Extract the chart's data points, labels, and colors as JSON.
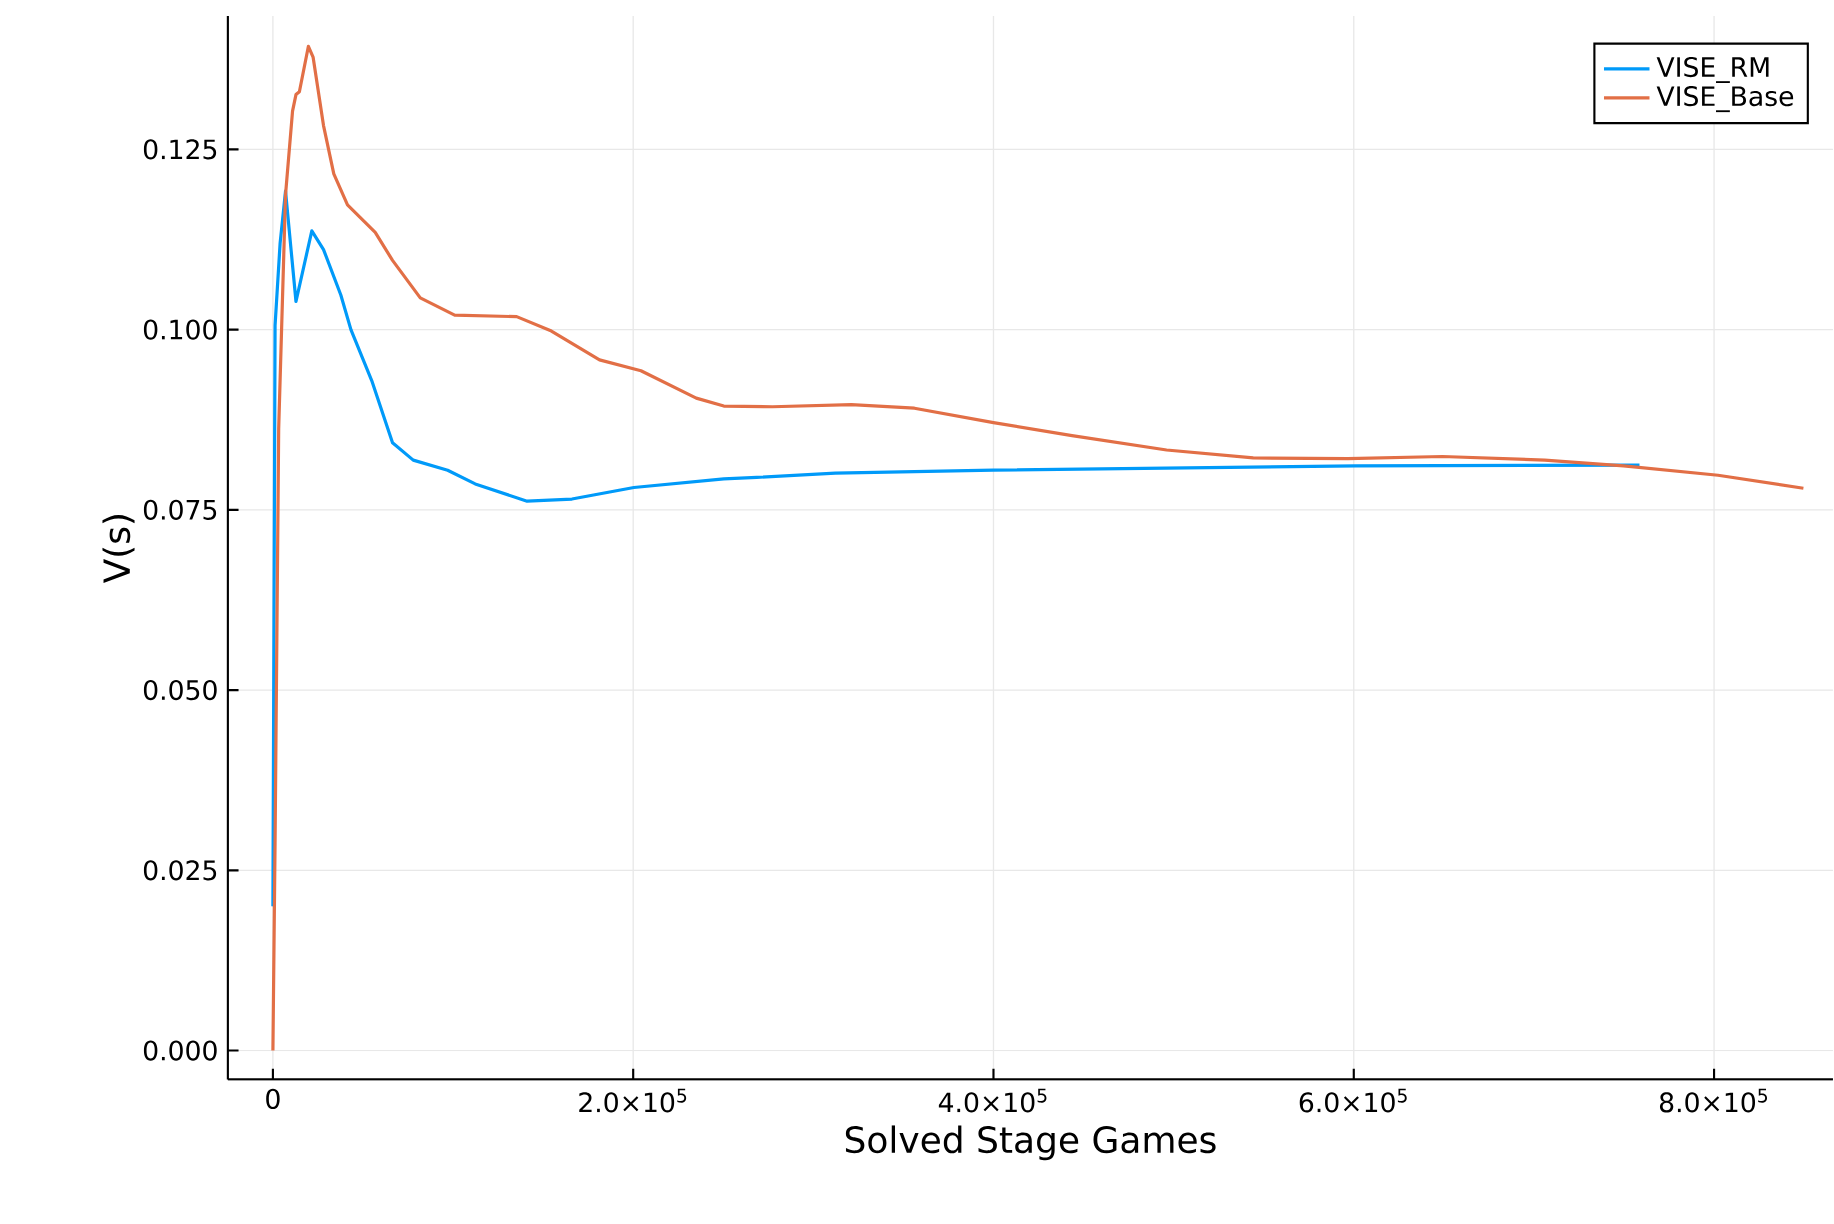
{
  "chart_data": {
    "type": "line",
    "xlabel": "Solved Stage Games",
    "ylabel": "V(s)",
    "xlim": [
      -25000,
      866000
    ],
    "ylim": [
      -0.004,
      0.1435
    ],
    "xticks": [
      {
        "value": 0,
        "label": "0"
      },
      {
        "value": 200000,
        "label": "2.0×10$^{5}$"
      },
      {
        "value": 400000,
        "label": "4.0×10$^{5}$"
      },
      {
        "value": 600000,
        "label": "6.0×10$^{5}$"
      },
      {
        "value": 800000,
        "label": "8.0×10$^{5}$"
      }
    ],
    "yticks": [
      {
        "value": 0,
        "label": "0.000"
      },
      {
        "value": 0.025,
        "label": "0.025"
      },
      {
        "value": 0.05,
        "label": "0.050"
      },
      {
        "value": 0.075,
        "label": "0.075"
      },
      {
        "value": 0.1,
        "label": "0.100"
      },
      {
        "value": 0.125,
        "label": "0.125"
      }
    ],
    "grid": true,
    "legend": "top right",
    "marker": "none",
    "line_style": "solid",
    "series": [
      {
        "name": "VISE_RM",
        "color": "#009af9",
        "x": [
          0,
          1200,
          4000,
          7000,
          12800,
          21600,
          28100,
          37700,
          43300,
          54900,
          66400,
          77900,
          97000,
          112300,
          141100,
          166000,
          200400,
          250300,
          268600,
          312200,
          400000,
          601000,
          758600
        ],
        "values": [
          0.02,
          0.1006,
          0.112,
          0.1192,
          0.1039,
          0.1137,
          0.1111,
          0.1048,
          0.1,
          0.0929,
          0.0843,
          0.0819,
          0.0805,
          0.0786,
          0.0762,
          0.0765,
          0.0781,
          0.0793,
          0.0795,
          0.0801,
          0.0805,
          0.0811,
          0.0812
        ]
      },
      {
        "name": "VISE_Base",
        "color": "#e26f46",
        "x": [
          0,
          1200,
          3200,
          7000,
          10900,
          12800,
          14700,
          19700,
          22300,
          28100,
          33800,
          41400,
          56800,
          66400,
          81800,
          100900,
          135300,
          154600,
          181300,
          204300,
          235000,
          250300,
          277300,
          321100,
          356100,
          400000,
          443600,
          496100,
          544200,
          596700,
          649200,
          706000,
          749800,
          802200,
          849600
        ],
        "values": [
          0,
          0.0289,
          0.0862,
          0.1187,
          0.1303,
          0.1326,
          0.133,
          0.1393,
          0.1378,
          0.1283,
          0.1216,
          0.1173,
          0.1135,
          0.1096,
          0.1044,
          0.102,
          0.1018,
          0.0998,
          0.0958,
          0.0943,
          0.0905,
          0.0894,
          0.0893,
          0.0896,
          0.0891,
          0.0871,
          0.0853,
          0.0833,
          0.0822,
          0.0821,
          0.0824,
          0.0819,
          0.0811,
          0.0798,
          0.078
        ]
      }
    ]
  }
}
